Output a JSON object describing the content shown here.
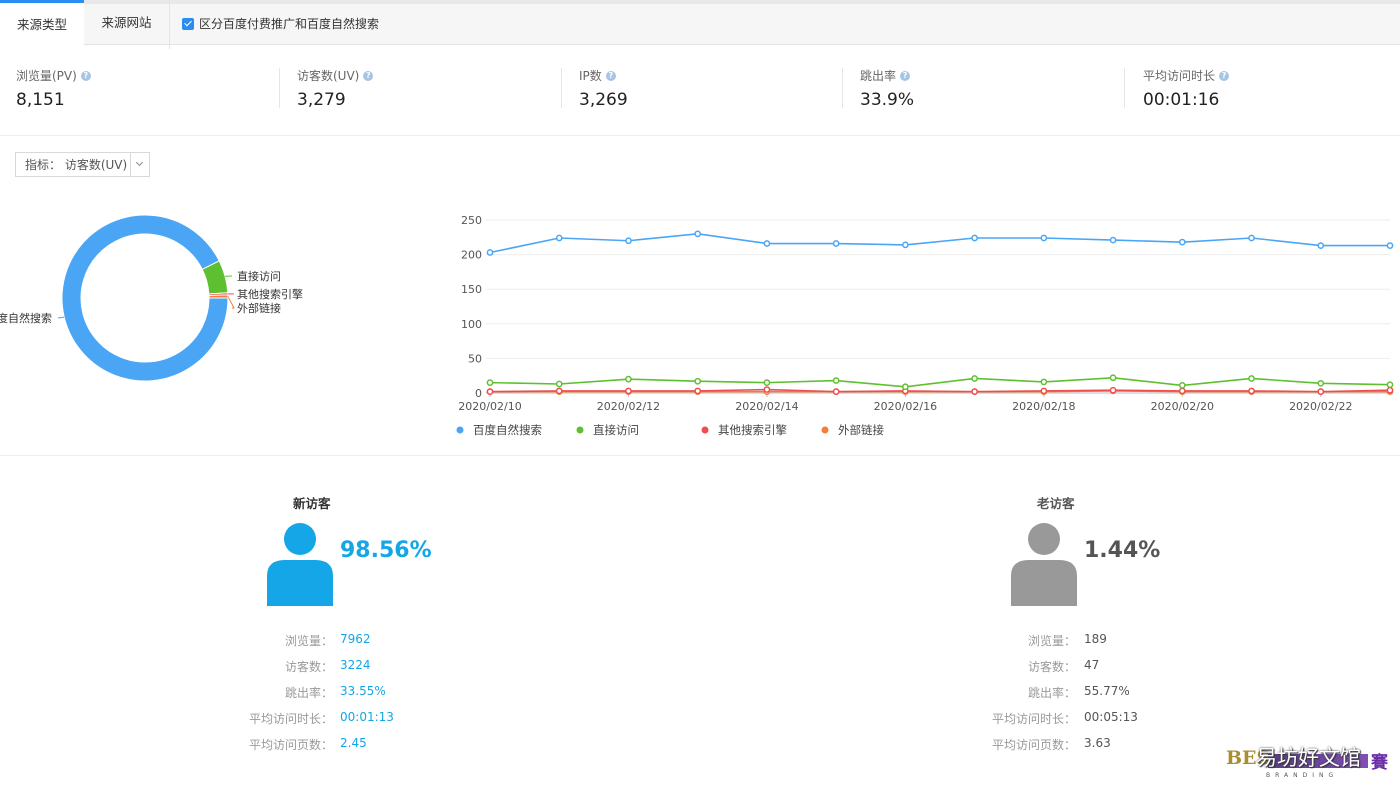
{
  "tabs": [
    {
      "label": "来源类型",
      "active": true
    },
    {
      "label": "来源网站",
      "active": false
    }
  ],
  "checkbox_label": "区分百度付费推广和百度自然搜索",
  "metrics": [
    {
      "label": "浏览量(PV)",
      "value": "8,151"
    },
    {
      "label": "访客数(UV)",
      "value": "3,279"
    },
    {
      "label": "IP数",
      "value": "3,269"
    },
    {
      "label": "跳出率",
      "value": "33.9%"
    },
    {
      "label": "平均访问时长",
      "value": "00:01:16"
    }
  ],
  "help_icon": "question-circle-icon",
  "selector": {
    "text": "指标： 访客数(UV)"
  },
  "colors": {
    "baidu": "#4aa6f5",
    "direct": "#5ec030",
    "other": "#f04e4e",
    "external": "#f57c3a",
    "new_accent": "#14a6e6",
    "old_accent": "#999999"
  },
  "chart_data": [
    {
      "type": "pie",
      "variant": "donut",
      "labels": [
        "百度自然搜索",
        "直接访问",
        "其他搜索引擎",
        "外部链接"
      ],
      "values": [
        92.6,
        6.4,
        0.4,
        0.6
      ],
      "label_side": [
        "left",
        "right",
        "right",
        "right"
      ]
    },
    {
      "type": "line",
      "x": [
        "2020/02/10",
        "2020/02/11",
        "2020/02/12",
        "2020/02/13",
        "2020/02/14",
        "2020/02/15",
        "2020/02/16",
        "2020/02/17",
        "2020/02/18",
        "2020/02/19",
        "2020/02/20",
        "2020/02/21",
        "2020/02/22",
        "2020/02/23"
      ],
      "xtick_labels": [
        "2020/02/10",
        "2020/02/12",
        "2020/02/14",
        "2020/02/16",
        "2020/02/18",
        "2020/02/20",
        "2020/02/22"
      ],
      "yticks": [
        0,
        50,
        100,
        150,
        200,
        250
      ],
      "ylim": [
        0,
        250
      ],
      "grid": true,
      "legend": "bottom",
      "series": [
        {
          "name": "百度自然搜索",
          "values": [
            203,
            224,
            220,
            230,
            216,
            216,
            214,
            224,
            224,
            221,
            218,
            224,
            213,
            213
          ]
        },
        {
          "name": "直接访问",
          "values": [
            15,
            13,
            20,
            17,
            15,
            18,
            9,
            21,
            16,
            22,
            11,
            21,
            14,
            12
          ]
        },
        {
          "name": "其他搜索引擎",
          "values": [
            2,
            3,
            3,
            3,
            5,
            2,
            3,
            2,
            3,
            4,
            3,
            3,
            2,
            4
          ]
        },
        {
          "name": "外部链接",
          "values": [
            2,
            2,
            2,
            2,
            2,
            2,
            2,
            2,
            2,
            3,
            2,
            2,
            2,
            2
          ]
        }
      ]
    }
  ],
  "new_visitor": {
    "title": "新访客",
    "pct": "98.56%",
    "icon": "user-icon",
    "rows": [
      {
        "k": "浏览量：",
        "v": "7962"
      },
      {
        "k": "访客数：",
        "v": "3224"
      },
      {
        "k": "跳出率：",
        "v": "33.55%"
      },
      {
        "k": "平均访问时长：",
        "v": "00:01:13"
      },
      {
        "k": "平均访问页数：",
        "v": "2.45"
      }
    ]
  },
  "old_visitor": {
    "title": "老访客",
    "pct": "1.44%",
    "icon": "user-icon",
    "rows": [
      {
        "k": "浏览量：",
        "v": "189"
      },
      {
        "k": "访客数：",
        "v": "47"
      },
      {
        "k": "跳出率：",
        "v": "55.77%"
      },
      {
        "k": "平均访问时长：",
        "v": "00:05:13"
      },
      {
        "k": "平均访问页数：",
        "v": "3.63"
      }
    ]
  },
  "watermark": {
    "en": "BES",
    "cn": "易坊好文馆",
    "sub": "BRANDING",
    "tail": "賽"
  }
}
